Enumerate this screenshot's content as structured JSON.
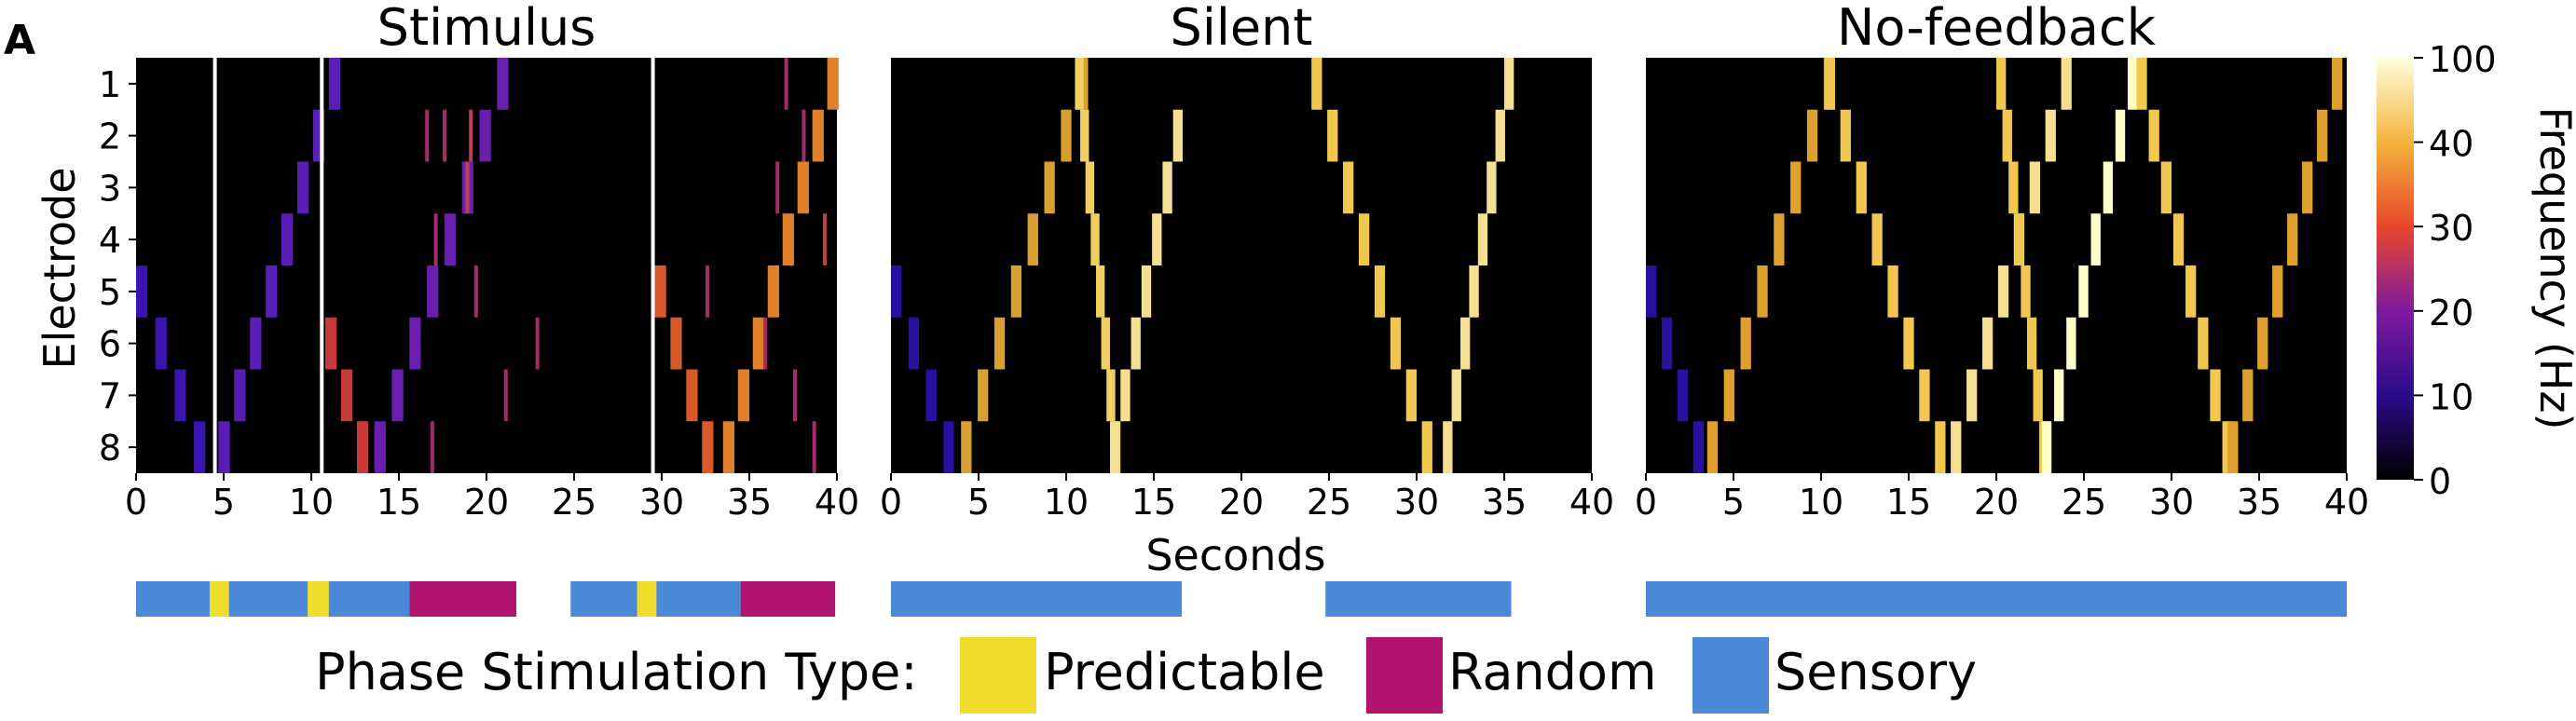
{
  "figure": {
    "panel_label": "A"
  },
  "chart_data": {
    "type": "heatmap",
    "title": "",
    "xlabel": "Seconds",
    "ylabel": "Electrode",
    "x_ticks": [
      0,
      5,
      10,
      15,
      20,
      25,
      30,
      35,
      40
    ],
    "xlim": [
      0,
      40
    ],
    "electrodes": [
      1,
      2,
      3,
      4,
      5,
      6,
      7,
      8
    ],
    "colorbar": {
      "label": "Frequency (Hz)",
      "ticks": [
        0,
        10,
        20,
        30,
        40,
        100
      ],
      "tick_labels": [
        "0",
        "10",
        "20",
        "30",
        "40",
        "100"
      ],
      "colormap": "inferno-like",
      "stops": [
        "#000000",
        "#2b0a8a",
        "#7f1a9e",
        "#e8472a",
        "#f4b43c",
        "#ffffe0"
      ]
    },
    "panels": [
      {
        "title": "Stimulus",
        "markers": [
          4.5,
          10.6,
          29.5
        ],
        "sweeps": [
          {
            "t0": 0.0,
            "dir": "down",
            "from": 5,
            "to": 8,
            "dwell": 1.1,
            "width": 0.65,
            "color": "#3a14b0"
          },
          {
            "t0": 4.7,
            "dir": "up",
            "from": 8,
            "to": 1,
            "dwell": 0.9,
            "width": 0.65,
            "color": "#5a1eb8"
          },
          {
            "t0": 10.8,
            "dir": "down",
            "from": 6,
            "to": 8,
            "dwell": 0.9,
            "width": 0.65,
            "color": "#c83a3a"
          },
          {
            "t0": 13.6,
            "dir": "up",
            "from": 8,
            "to": 1,
            "dwell": 1.0,
            "width": 0.65,
            "color": "#6a1eb0"
          },
          {
            "t0": 29.6,
            "dir": "down",
            "from": 5,
            "to": 8,
            "dwell": 0.9,
            "width": 0.65,
            "color": "#d65a2a"
          },
          {
            "t0": 33.5,
            "dir": "up",
            "from": 8,
            "to": 1,
            "dwell": 0.85,
            "width": 0.65,
            "color": "#e0802a"
          }
        ],
        "random_bars": [
          {
            "t": 16.5,
            "e": 2,
            "color": "#a42a6a"
          },
          {
            "t": 17.5,
            "e": 2,
            "color": "#a42a6a"
          },
          {
            "t": 19.0,
            "e": 2,
            "color": "#b8405a"
          },
          {
            "t": 17.0,
            "e": 4,
            "color": "#a42a6a"
          },
          {
            "t": 18.8,
            "e": 3,
            "color": "#c04050"
          },
          {
            "t": 22.8,
            "e": 6,
            "color": "#a42a6a"
          },
          {
            "t": 21.0,
            "e": 7,
            "color": "#a42a6a"
          },
          {
            "t": 16.8,
            "e": 8,
            "color": "#a42a6a"
          },
          {
            "t": 19.3,
            "e": 5,
            "color": "#a42a6a"
          },
          {
            "t": 37.0,
            "e": 1,
            "color": "#a42a6a"
          },
          {
            "t": 38.0,
            "e": 2,
            "color": "#a42a6a"
          },
          {
            "t": 39.2,
            "e": 4,
            "color": "#c04050"
          },
          {
            "t": 36.5,
            "e": 3,
            "color": "#a42a6a"
          },
          {
            "t": 37.5,
            "e": 7,
            "color": "#a42a6a"
          },
          {
            "t": 35.8,
            "e": 6,
            "color": "#a42a6a"
          },
          {
            "t": 38.6,
            "e": 8,
            "color": "#a42a6a"
          },
          {
            "t": 32.5,
            "e": 5,
            "color": "#a42a6a"
          }
        ]
      },
      {
        "title": "Silent",
        "markers": [],
        "sweeps": [
          {
            "t0": 0.0,
            "dir": "down",
            "from": 5,
            "to": 8,
            "dwell": 1.0,
            "width": 0.6,
            "color": "#2a10a0"
          },
          {
            "t0": 4.0,
            "dir": "up",
            "from": 8,
            "to": 1,
            "dwell": 0.95,
            "width": 0.6,
            "color": "#d8a030"
          },
          {
            "t0": 10.5,
            "dir": "down",
            "from": 1,
            "to": 8,
            "dwell": 0.3,
            "width": 0.5,
            "color": "#f0d060"
          },
          {
            "t0": 12.5,
            "dir": "up",
            "from": 8,
            "to": 2,
            "dwell": 0.6,
            "width": 0.55,
            "color": "#f4e090"
          },
          {
            "t0": 24.0,
            "dir": "down",
            "from": 1,
            "to": 8,
            "dwell": 0.9,
            "width": 0.6,
            "color": "#f0c850"
          },
          {
            "t0": 31.5,
            "dir": "up",
            "from": 8,
            "to": 1,
            "dwell": 0.5,
            "width": 0.55,
            "color": "#f4e090"
          }
        ],
        "random_bars": []
      },
      {
        "title": "No-feedback",
        "markers": [],
        "sweeps": [
          {
            "t0": 0.0,
            "dir": "down",
            "from": 5,
            "to": 8,
            "dwell": 0.9,
            "width": 0.6,
            "color": "#2a10a0"
          },
          {
            "t0": 3.5,
            "dir": "up",
            "from": 8,
            "to": 1,
            "dwell": 0.95,
            "width": 0.6,
            "color": "#e0a030"
          },
          {
            "t0": 10.2,
            "dir": "down",
            "from": 1,
            "to": 8,
            "dwell": 0.9,
            "width": 0.6,
            "color": "#f0c850"
          },
          {
            "t0": 17.4,
            "dir": "up",
            "from": 8,
            "to": 1,
            "dwell": 0.9,
            "width": 0.6,
            "color": "#f4e090"
          },
          {
            "t0": 20.0,
            "dir": "down",
            "from": 1,
            "to": 8,
            "dwell": 0.35,
            "width": 0.55,
            "color": "#f0c850"
          },
          {
            "t0": 22.6,
            "dir": "up",
            "from": 8,
            "to": 1,
            "dwell": 0.7,
            "width": 0.55,
            "color": "#ffffc8"
          },
          {
            "t0": 28.0,
            "dir": "down",
            "from": 1,
            "to": 8,
            "dwell": 0.7,
            "width": 0.6,
            "color": "#f0c850"
          },
          {
            "t0": 33.2,
            "dir": "up",
            "from": 8,
            "to": 1,
            "dwell": 0.85,
            "width": 0.6,
            "color": "#e0a030"
          }
        ],
        "random_bars": []
      }
    ],
    "phase_timeline": [
      {
        "panel": 0,
        "segments": [
          {
            "start": 0,
            "end": 4.2,
            "type": "sensory"
          },
          {
            "start": 4.2,
            "end": 5.3,
            "type": "predictable"
          },
          {
            "start": 5.3,
            "end": 9.8,
            "type": "sensory"
          },
          {
            "start": 9.8,
            "end": 11.0,
            "type": "predictable"
          },
          {
            "start": 11.0,
            "end": 15.6,
            "type": "sensory"
          },
          {
            "start": 15.6,
            "end": 21.7,
            "type": "random"
          },
          {
            "start": 24.8,
            "end": 28.6,
            "type": "sensory"
          },
          {
            "start": 28.6,
            "end": 29.7,
            "type": "predictable"
          },
          {
            "start": 29.7,
            "end": 34.5,
            "type": "sensory"
          },
          {
            "start": 34.5,
            "end": 39.9,
            "type": "random"
          }
        ]
      },
      {
        "panel": 1,
        "segments": [
          {
            "start": 0,
            "end": 16.6,
            "type": "sensory"
          },
          {
            "start": 24.8,
            "end": 35.4,
            "type": "sensory"
          }
        ]
      },
      {
        "panel": 2,
        "segments": [
          {
            "start": 0,
            "end": 40,
            "type": "sensory"
          }
        ]
      }
    ],
    "legend": {
      "title": "Phase Stimulation Type:",
      "placement": "bottom-center",
      "items": [
        {
          "key": "predictable",
          "label": "Predictable",
          "color": "#f0dc2a"
        },
        {
          "key": "random",
          "label": "Random",
          "color": "#b0146e"
        },
        {
          "key": "sensory",
          "label": "Sensory",
          "color": "#4a88d8"
        }
      ]
    }
  }
}
